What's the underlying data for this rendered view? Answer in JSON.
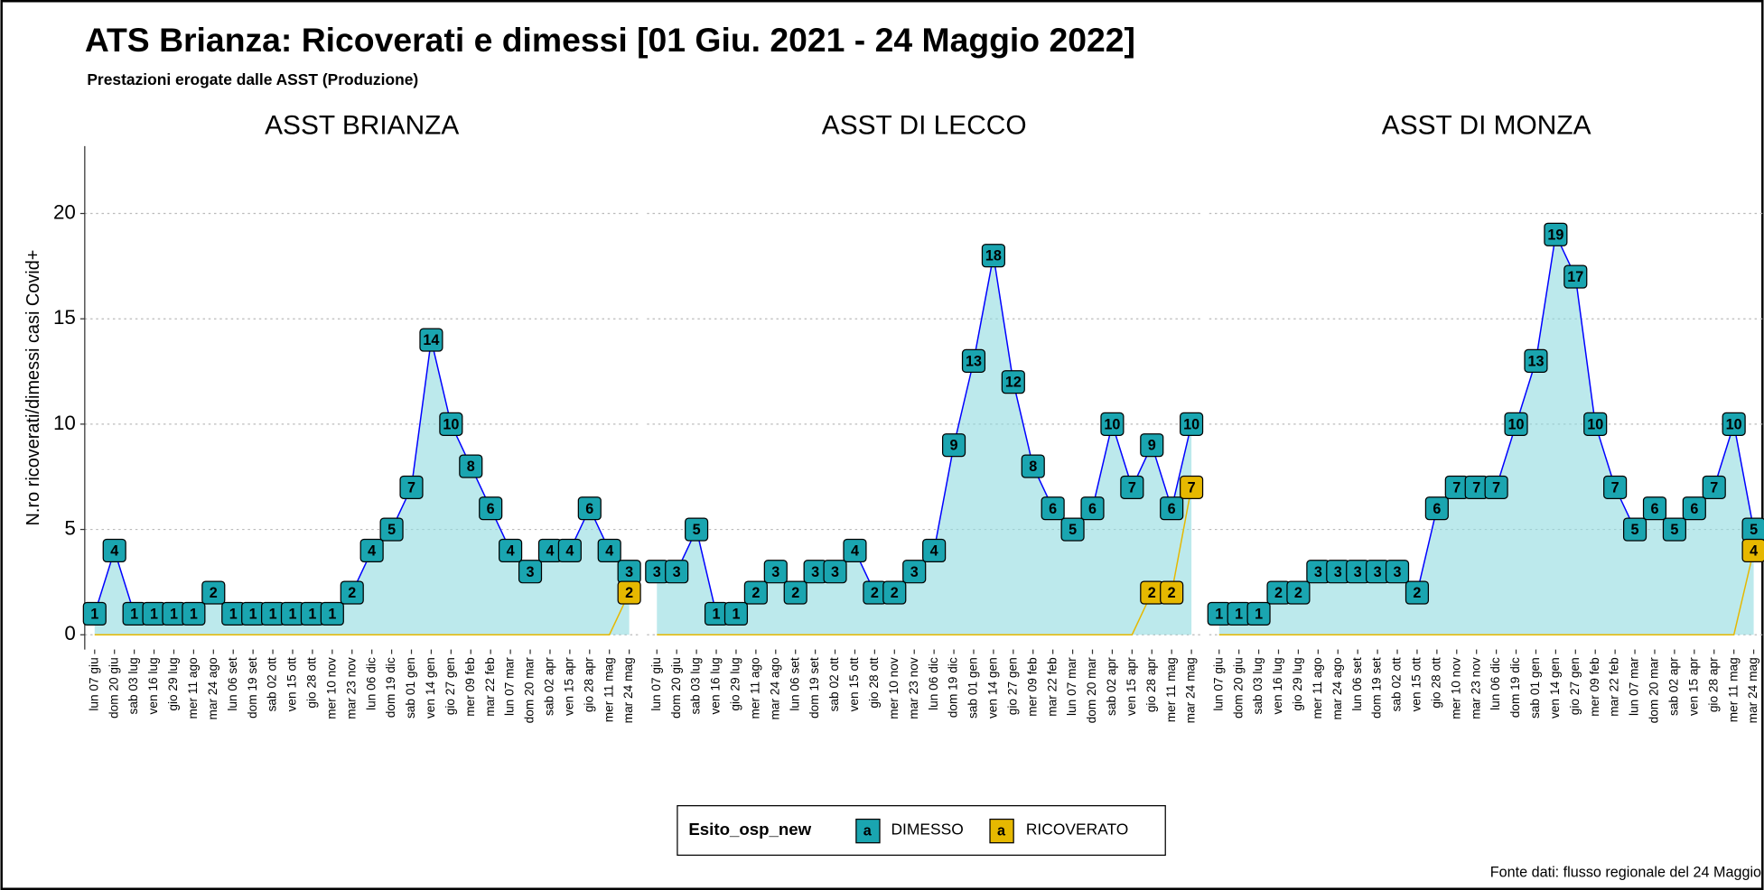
{
  "header": {
    "title": "ATS Brianza: Ricoverati e dimessi [01 Giu. 2021 - 24 Maggio 2022]",
    "subtitle": "Prestazioni erogate dalle ASST (Produzione)"
  },
  "y_label": "N.ro ricoverati/dimessi casi Covid+",
  "legend_title": "Esito_osp_new",
  "legend_key": "a",
  "source": "Fonte dati: flusso regionale del 24 Maggio",
  "chart_data": [
    {
      "type": "line",
      "title": "ASST BRIANZA",
      "categories": [
        "lun 07 giu",
        "dom 20 giu",
        "sab 03 lug",
        "ven 16 lug",
        "gio 29 lug",
        "mer 11 ago",
        "mar 24 ago",
        "lun 06 set",
        "dom 19 set",
        "sab 02 ott",
        "ven 15 ott",
        "gio 28 ott",
        "mer 10 nov",
        "mar 23 nov",
        "lun 06 dic",
        "dom 19 dic",
        "sab 01 gen",
        "ven 14 gen",
        "gio 27 gen",
        "mer 09 feb",
        "mar 22 feb",
        "lun 07 mar",
        "dom 20 mar",
        "sab 02 apr",
        "ven 15 apr",
        "gio 28 apr",
        "mer 11 mag",
        "mar 24 mag"
      ],
      "series": [
        {
          "name": "DIMESSO",
          "color": "#1aa5b0",
          "values": [
            1,
            4,
            1,
            1,
            1,
            1,
            2,
            1,
            1,
            1,
            1,
            1,
            1,
            2,
            4,
            5,
            7,
            14,
            10,
            8,
            6,
            4,
            3,
            4,
            4,
            6,
            4,
            3
          ]
        },
        {
          "name": "RICOVERATO",
          "color": "#e6b800",
          "values": [
            0,
            0,
            0,
            0,
            0,
            0,
            0,
            0,
            0,
            0,
            0,
            0,
            0,
            0,
            0,
            0,
            0,
            0,
            0,
            0,
            0,
            0,
            0,
            0,
            0,
            0,
            0,
            2
          ]
        }
      ],
      "ylim": [
        -0.7,
        23.2
      ],
      "yticks": [
        0,
        5,
        10,
        15,
        20
      ],
      "grid": true
    },
    {
      "type": "line",
      "title": "ASST DI LECCO",
      "categories": [
        "lun 07 giu",
        "dom 20 giu",
        "sab 03 lug",
        "ven 16 lug",
        "gio 29 lug",
        "mer 11 ago",
        "mar 24 ago",
        "lun 06 set",
        "dom 19 set",
        "sab 02 ott",
        "ven 15 ott",
        "gio 28 ott",
        "mer 10 nov",
        "mar 23 nov",
        "lun 06 dic",
        "dom 19 dic",
        "sab 01 gen",
        "ven 14 gen",
        "gio 27 gen",
        "mer 09 feb",
        "mar 22 feb",
        "lun 07 mar",
        "dom 20 mar",
        "sab 02 apr",
        "ven 15 apr",
        "gio 28 apr",
        "mer 11 mag",
        "mar 24 mag"
      ],
      "series": [
        {
          "name": "DIMESSO",
          "color": "#1aa5b0",
          "values": [
            3,
            3,
            5,
            1,
            1,
            2,
            3,
            2,
            3,
            3,
            4,
            2,
            2,
            3,
            4,
            9,
            13,
            18,
            12,
            8,
            6,
            5,
            6,
            10,
            7,
            9,
            6,
            10
          ]
        },
        {
          "name": "RICOVERATO",
          "color": "#e6b800",
          "values": [
            0,
            0,
            0,
            0,
            0,
            0,
            0,
            0,
            0,
            0,
            0,
            0,
            0,
            0,
            0,
            0,
            0,
            0,
            0,
            0,
            0,
            0,
            0,
            0,
            0,
            2,
            2,
            7
          ]
        }
      ],
      "ylim": [
        -0.7,
        23.2
      ],
      "yticks": [
        0,
        5,
        10,
        15,
        20
      ],
      "grid": true
    },
    {
      "type": "line",
      "title": "ASST DI MONZA",
      "categories": [
        "lun 07 giu",
        "dom 20 giu",
        "sab 03 lug",
        "ven 16 lug",
        "gio 29 lug",
        "mer 11 ago",
        "mar 24 ago",
        "lun 06 set",
        "dom 19 set",
        "sab 02 ott",
        "ven 15 ott",
        "gio 28 ott",
        "mer 10 nov",
        "mar 23 nov",
        "lun 06 dic",
        "dom 19 dic",
        "sab 01 gen",
        "ven 14 gen",
        "gio 27 gen",
        "mer 09 feb",
        "mar 22 feb",
        "lun 07 mar",
        "dom 20 mar",
        "sab 02 apr",
        "ven 15 apr",
        "gio 28 apr",
        "mer 11 mag",
        "mar 24 mag"
      ],
      "series": [
        {
          "name": "DIMESSO",
          "color": "#1aa5b0",
          "values": [
            1,
            1,
            1,
            2,
            2,
            3,
            3,
            3,
            3,
            3,
            2,
            6,
            7,
            7,
            7,
            10,
            13,
            19,
            17,
            10,
            7,
            5,
            6,
            5,
            6,
            7,
            10,
            5
          ]
        },
        {
          "name": "RICOVERATO",
          "color": "#e6b800",
          "values": [
            0,
            0,
            0,
            0,
            0,
            0,
            0,
            0,
            0,
            0,
            0,
            0,
            0,
            0,
            0,
            0,
            0,
            0,
            0,
            0,
            0,
            0,
            0,
            0,
            0,
            0,
            0,
            4
          ]
        }
      ],
      "ylim": [
        -0.7,
        23.2
      ],
      "yticks": [
        0,
        5,
        10,
        15,
        20
      ],
      "grid": true
    }
  ]
}
